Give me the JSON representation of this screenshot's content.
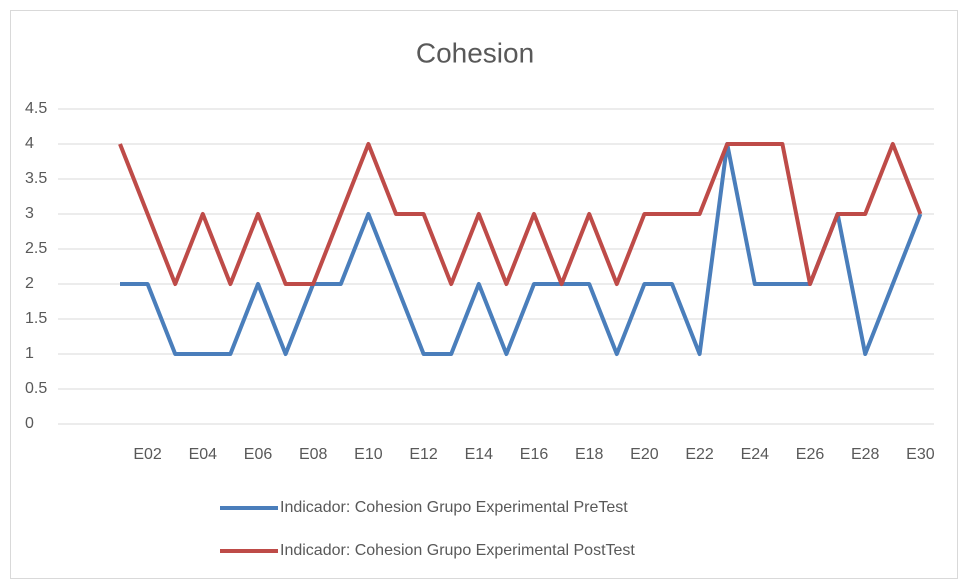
{
  "chart_data": {
    "type": "line",
    "title": "Cohesion",
    "categories": [
      null,
      "E02",
      null,
      "E04",
      null,
      "E06",
      null,
      "E08",
      null,
      "E10",
      null,
      "E12",
      null,
      "E14",
      null,
      "E16",
      null,
      "E18",
      null,
      "E20",
      null,
      "E22",
      null,
      "E24",
      null,
      "E26",
      null,
      "E28",
      null,
      "E30"
    ],
    "series": [
      {
        "name": "Indicador: Cohesion Grupo Experimental PreTest",
        "color": "#4a7ebb",
        "values": [
          2,
          2,
          1,
          1,
          1,
          2,
          1,
          2,
          2,
          3,
          2,
          1,
          1,
          2,
          1,
          2,
          2,
          2,
          1,
          2,
          2,
          1,
          4,
          2,
          2,
          2,
          3,
          1,
          2,
          3
        ]
      },
      {
        "name": "Indicador: Cohesion Grupo Experimental PostTest",
        "color": "#be4b48",
        "values": [
          4,
          3,
          2,
          3,
          2,
          3,
          2,
          2,
          3,
          4,
          3,
          3,
          2,
          3,
          2,
          3,
          2,
          3,
          2,
          3,
          3,
          3,
          4,
          4,
          4,
          2,
          3,
          3,
          4,
          3
        ]
      }
    ],
    "ylim": [
      0,
      4.5
    ],
    "yticks": [
      0,
      0.5,
      1,
      1.5,
      2,
      2.5,
      3,
      3.5,
      4,
      4.5
    ],
    "grid": true,
    "legend": "bottom"
  }
}
